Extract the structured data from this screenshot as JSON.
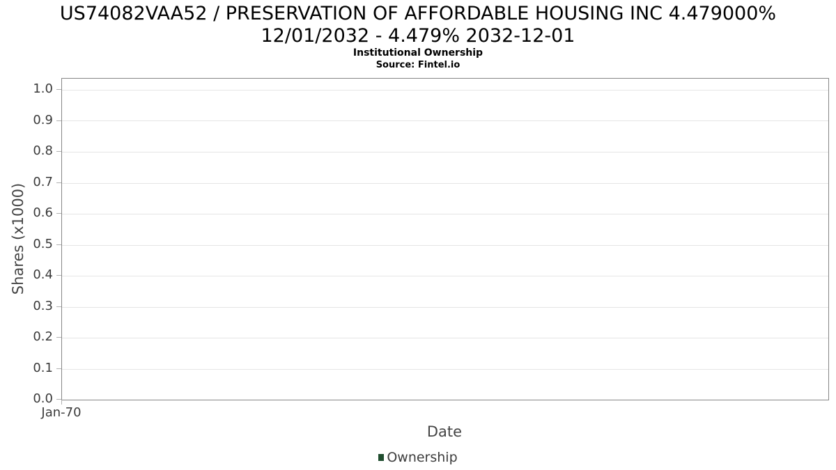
{
  "header": {
    "title_line1": "US74082VAA52 / PRESERVATION OF AFFORDABLE HOUSING INC 4.479000%",
    "title_line2": "12/01/2032 - 4.479% 2032-12-01",
    "subtitle": "Institutional Ownership",
    "source": "Source: Fintel.io"
  },
  "chart_data": {
    "type": "line",
    "title": "US74082VAA52 / PRESERVATION OF AFFORDABLE HOUSING INC 4.479000% 12/01/2032 - 4.479% 2032-12-01",
    "subtitle": "Institutional Ownership",
    "source": "Source: Fintel.io",
    "xlabel": "Date",
    "ylabel": "Shares (x1000)",
    "x_tick_labels": [
      "Jan-70"
    ],
    "y_tick_labels": [
      "0.0",
      "0.1",
      "0.2",
      "0.3",
      "0.4",
      "0.5",
      "0.6",
      "0.7",
      "0.8",
      "0.9",
      "1.0"
    ],
    "ylim": [
      0.0,
      1.036
    ],
    "xlim_note": "no data plotted - empty chart",
    "grid": true,
    "legend_position": "bottom-center",
    "series": [
      {
        "name": "Ownership",
        "color": "#1f4d2e",
        "x": [],
        "values": []
      }
    ]
  },
  "legend": {
    "items": [
      {
        "label": "Ownership",
        "marker_color": "#1f4d2e"
      }
    ]
  },
  "colors": {
    "background": "#ffffff",
    "title_text": "#000000",
    "axis_border": "#858585",
    "gridline": "#e5e5e5",
    "tick_mark": "#b0b0b0",
    "tick_label_text": "#3a3a3a",
    "axis_title_text": "#444444",
    "legend_text": "#3c3c3c",
    "legend_marker": "#1f4d2e"
  }
}
